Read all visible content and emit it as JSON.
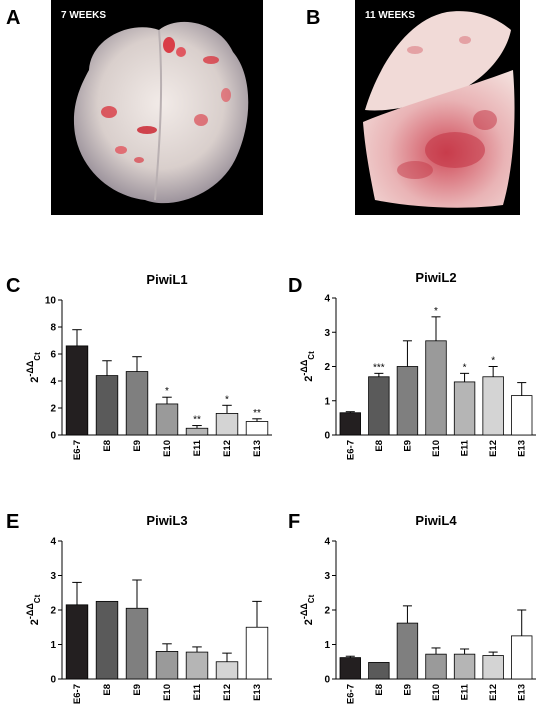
{
  "panels": {
    "A": {
      "letter": "A",
      "label": "7 WEEKS"
    },
    "B": {
      "letter": "B",
      "label": "11 WEEKS"
    },
    "C": {
      "letter": "C"
    },
    "D": {
      "letter": "D"
    },
    "E": {
      "letter": "E"
    },
    "F": {
      "letter": "F"
    }
  },
  "colors": {
    "E6-7": "#231f20",
    "E8": "#5a5a5a",
    "E9": "#7f7f7f",
    "E10": "#9a9a9a",
    "E11": "#b5b5b5",
    "E12": "#d4d4d4",
    "E13": "#ffffff"
  },
  "chart_data": [
    {
      "id": "C",
      "type": "bar",
      "title": "PiwiL1",
      "ylabel_base": "2",
      "ylabel_exp": "-ΔΔ",
      "ylabel_sub": "Ct",
      "categories": [
        "E6-7",
        "E8",
        "E9",
        "E10",
        "E11",
        "E12",
        "E13"
      ],
      "values": [
        6.6,
        4.4,
        4.7,
        2.3,
        0.5,
        1.6,
        1.0
      ],
      "errors": [
        1.2,
        1.1,
        1.1,
        0.5,
        0.2,
        0.6,
        0.2
      ],
      "significance": [
        "",
        "",
        "",
        "*",
        "**",
        "*",
        "**"
      ],
      "ylim": [
        0,
        10
      ],
      "yticks": [
        0,
        2,
        4,
        6,
        8,
        10
      ]
    },
    {
      "id": "D",
      "type": "bar",
      "title": "PiwiL2",
      "ylabel_base": "2",
      "ylabel_exp": "-ΔΔ",
      "ylabel_sub": "Ct",
      "categories": [
        "E6-7",
        "E8",
        "E9",
        "E10",
        "E11",
        "E12",
        "E13"
      ],
      "values": [
        0.65,
        1.7,
        2.0,
        2.75,
        1.55,
        1.7,
        1.15
      ],
      "errors": [
        0.03,
        0.1,
        0.75,
        0.7,
        0.25,
        0.3,
        0.38
      ],
      "significance": [
        "",
        "***",
        "",
        "*",
        "*",
        "*",
        ""
      ],
      "ylim": [
        0,
        4
      ],
      "yticks": [
        0,
        1,
        2,
        3,
        4
      ]
    },
    {
      "id": "E",
      "type": "bar",
      "title": "PiwiL3",
      "ylabel_base": "2",
      "ylabel_exp": "-ΔΔ",
      "ylabel_sub": "Ct",
      "categories": [
        "E6-7",
        "E8",
        "E9",
        "E10",
        "E11",
        "E12",
        "E13"
      ],
      "values": [
        2.15,
        2.25,
        2.05,
        0.8,
        0.78,
        0.5,
        1.5
      ],
      "errors": [
        0.65,
        0.0,
        0.82,
        0.22,
        0.15,
        0.25,
        0.75
      ],
      "significance": [
        "",
        "",
        "",
        "",
        "",
        "",
        ""
      ],
      "ylim": [
        0,
        4
      ],
      "yticks": [
        0,
        1,
        2,
        3,
        4
      ]
    },
    {
      "id": "F",
      "type": "bar",
      "title": "PiwiL4",
      "ylabel_base": "2",
      "ylabel_exp": "-ΔΔ",
      "ylabel_sub": "Ct",
      "categories": [
        "E6-7",
        "E8",
        "E9",
        "E10",
        "E11",
        "E12",
        "E13"
      ],
      "values": [
        0.62,
        0.48,
        1.62,
        0.72,
        0.72,
        0.68,
        1.25
      ],
      "errors": [
        0.04,
        0.0,
        0.5,
        0.18,
        0.15,
        0.1,
        0.75
      ],
      "significance": [
        "",
        "",
        "",
        "",
        "",
        "",
        ""
      ],
      "ylim": [
        0,
        4
      ],
      "yticks": [
        0,
        1,
        2,
        3,
        4
      ]
    }
  ]
}
